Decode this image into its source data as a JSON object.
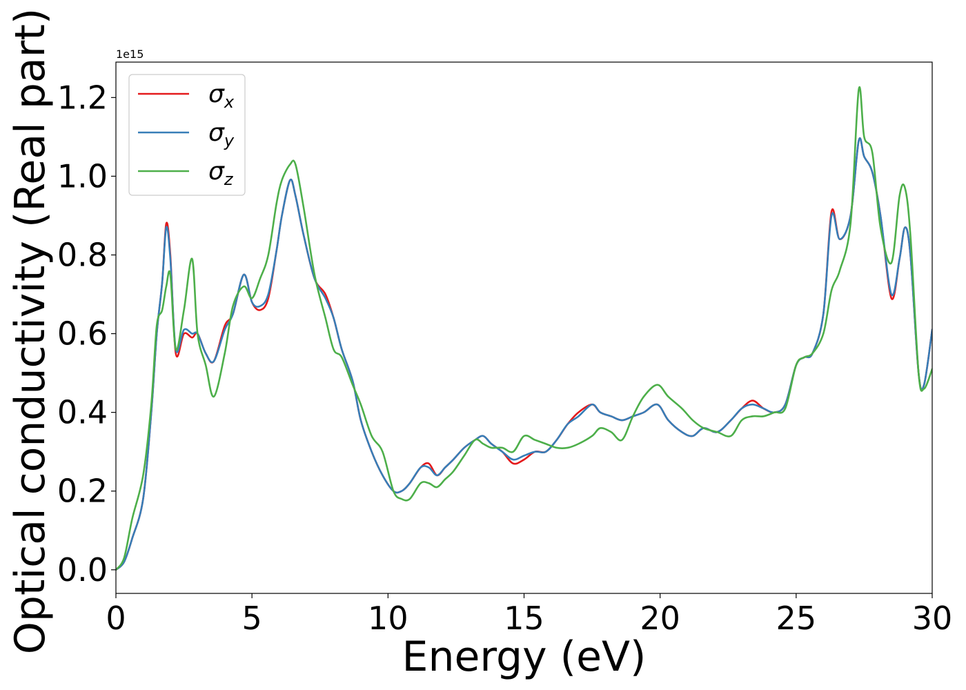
{
  "chart_data": {
    "type": "line",
    "xlabel": "Energy (eV)",
    "ylabel": "Optical conductivity (Real part)",
    "y_offset_text": "1e15",
    "xlim": [
      0,
      30
    ],
    "ylim": [
      -0.06,
      1.29
    ],
    "xticks": [
      0,
      5,
      10,
      15,
      20,
      25,
      30
    ],
    "xtick_labels": [
      "0",
      "5",
      "10",
      "15",
      "20",
      "25",
      "30"
    ],
    "yticks": [
      0.0,
      0.2,
      0.4,
      0.6,
      0.8,
      1.0,
      1.2
    ],
    "ytick_labels": [
      "0.0",
      "0.2",
      "0.4",
      "0.6",
      "0.8",
      "1.0",
      "1.2"
    ],
    "grid": false,
    "legend_position": "top-left",
    "series": [
      {
        "name": "σx",
        "legend_symbol": "σ",
        "legend_subscript": "x",
        "color": "#e41a1c",
        "x": [
          0,
          0.3,
          0.6,
          1.0,
          1.3,
          1.5,
          1.7,
          1.85,
          2.0,
          2.2,
          2.5,
          2.8,
          3.0,
          3.3,
          3.6,
          4.0,
          4.3,
          4.7,
          5.0,
          5.3,
          5.6,
          5.9,
          6.1,
          6.4,
          6.6,
          6.9,
          7.3,
          7.7,
          8.0,
          8.3,
          8.7,
          9.0,
          9.4,
          9.8,
          10.2,
          10.5,
          10.8,
          11.2,
          11.5,
          11.8,
          12.1,
          12.4,
          12.8,
          13.2,
          13.5,
          13.8,
          14.2,
          14.6,
          15.0,
          15.4,
          15.8,
          16.2,
          16.6,
          17.0,
          17.5,
          17.8,
          18.2,
          18.6,
          19.0,
          19.4,
          19.9,
          20.3,
          20.8,
          21.2,
          21.6,
          22.1,
          22.6,
          23.0,
          23.4,
          23.8,
          24.2,
          24.6,
          25.0,
          25.3,
          25.6,
          26.0,
          26.3,
          26.6,
          27.0,
          27.3,
          27.5,
          27.8,
          28.1,
          28.5,
          28.8,
          29.0,
          29.2,
          29.5,
          29.7,
          30.0
        ],
        "values": [
          0.0,
          0.02,
          0.08,
          0.18,
          0.4,
          0.6,
          0.73,
          0.88,
          0.8,
          0.55,
          0.6,
          0.59,
          0.6,
          0.55,
          0.53,
          0.62,
          0.65,
          0.75,
          0.68,
          0.66,
          0.69,
          0.81,
          0.9,
          0.99,
          0.95,
          0.85,
          0.74,
          0.7,
          0.64,
          0.56,
          0.48,
          0.38,
          0.3,
          0.24,
          0.2,
          0.2,
          0.22,
          0.26,
          0.27,
          0.24,
          0.26,
          0.28,
          0.31,
          0.33,
          0.34,
          0.32,
          0.3,
          0.27,
          0.28,
          0.3,
          0.3,
          0.33,
          0.37,
          0.4,
          0.42,
          0.4,
          0.39,
          0.38,
          0.39,
          0.4,
          0.42,
          0.38,
          0.35,
          0.34,
          0.36,
          0.35,
          0.38,
          0.41,
          0.43,
          0.41,
          0.4,
          0.42,
          0.52,
          0.54,
          0.55,
          0.65,
          0.91,
          0.84,
          0.9,
          1.09,
          1.05,
          1.01,
          0.9,
          0.69,
          0.79,
          0.87,
          0.8,
          0.5,
          0.47,
          0.61
        ]
      },
      {
        "name": "σy",
        "legend_symbol": "σ",
        "legend_subscript": "y",
        "color": "#377eb8",
        "x": [
          0,
          0.3,
          0.6,
          1.0,
          1.3,
          1.5,
          1.7,
          1.85,
          2.0,
          2.2,
          2.5,
          2.8,
          3.0,
          3.3,
          3.6,
          4.0,
          4.3,
          4.7,
          5.0,
          5.3,
          5.6,
          5.9,
          6.1,
          6.4,
          6.6,
          6.9,
          7.3,
          7.7,
          8.0,
          8.3,
          8.7,
          9.0,
          9.4,
          9.8,
          10.2,
          10.5,
          10.8,
          11.2,
          11.5,
          11.8,
          12.1,
          12.4,
          12.8,
          13.2,
          13.5,
          13.8,
          14.2,
          14.6,
          15.0,
          15.4,
          15.8,
          16.2,
          16.6,
          17.0,
          17.5,
          17.8,
          18.2,
          18.6,
          19.0,
          19.4,
          19.9,
          20.3,
          20.8,
          21.2,
          21.6,
          22.1,
          22.6,
          23.0,
          23.4,
          23.8,
          24.2,
          24.6,
          25.0,
          25.3,
          25.6,
          26.0,
          26.3,
          26.6,
          27.0,
          27.3,
          27.5,
          27.8,
          28.1,
          28.5,
          28.8,
          29.0,
          29.2,
          29.5,
          29.7,
          30.0
        ],
        "values": [
          0.0,
          0.02,
          0.08,
          0.18,
          0.4,
          0.6,
          0.73,
          0.87,
          0.79,
          0.56,
          0.61,
          0.6,
          0.6,
          0.55,
          0.53,
          0.61,
          0.65,
          0.75,
          0.68,
          0.67,
          0.7,
          0.81,
          0.9,
          0.99,
          0.95,
          0.85,
          0.74,
          0.69,
          0.64,
          0.56,
          0.48,
          0.38,
          0.3,
          0.24,
          0.2,
          0.2,
          0.22,
          0.26,
          0.26,
          0.24,
          0.26,
          0.28,
          0.31,
          0.33,
          0.34,
          0.32,
          0.3,
          0.28,
          0.29,
          0.3,
          0.3,
          0.33,
          0.37,
          0.39,
          0.42,
          0.4,
          0.39,
          0.38,
          0.39,
          0.4,
          0.42,
          0.38,
          0.35,
          0.34,
          0.36,
          0.35,
          0.38,
          0.41,
          0.42,
          0.41,
          0.4,
          0.42,
          0.52,
          0.54,
          0.55,
          0.65,
          0.9,
          0.84,
          0.9,
          1.09,
          1.05,
          1.01,
          0.9,
          0.7,
          0.79,
          0.87,
          0.8,
          0.5,
          0.47,
          0.61
        ]
      },
      {
        "name": "σz",
        "legend_symbol": "σ",
        "legend_subscript": "z",
        "color": "#4daf4a",
        "x": [
          0,
          0.3,
          0.6,
          1.0,
          1.3,
          1.5,
          1.7,
          1.85,
          2.0,
          2.2,
          2.5,
          2.8,
          3.0,
          3.3,
          3.6,
          4.0,
          4.3,
          4.7,
          5.0,
          5.3,
          5.6,
          5.9,
          6.1,
          6.4,
          6.6,
          6.9,
          7.3,
          7.7,
          8.0,
          8.3,
          8.7,
          9.0,
          9.4,
          9.8,
          10.2,
          10.5,
          10.8,
          11.2,
          11.5,
          11.8,
          12.1,
          12.4,
          12.8,
          13.2,
          13.5,
          13.8,
          14.2,
          14.6,
          15.0,
          15.4,
          15.8,
          16.2,
          16.6,
          17.0,
          17.5,
          17.8,
          18.2,
          18.6,
          19.0,
          19.4,
          19.9,
          20.3,
          20.8,
          21.2,
          21.6,
          22.1,
          22.6,
          23.0,
          23.4,
          23.8,
          24.2,
          24.6,
          25.0,
          25.3,
          25.6,
          26.0,
          26.3,
          26.6,
          27.0,
          27.3,
          27.5,
          27.8,
          28.1,
          28.5,
          28.8,
          29.0,
          29.2,
          29.5,
          29.7,
          30.0
        ],
        "values": [
          0.0,
          0.03,
          0.13,
          0.24,
          0.42,
          0.62,
          0.66,
          0.72,
          0.75,
          0.56,
          0.66,
          0.79,
          0.6,
          0.52,
          0.44,
          0.55,
          0.67,
          0.72,
          0.69,
          0.74,
          0.8,
          0.93,
          0.99,
          1.03,
          1.03,
          0.92,
          0.75,
          0.64,
          0.56,
          0.54,
          0.47,
          0.42,
          0.34,
          0.3,
          0.2,
          0.18,
          0.18,
          0.22,
          0.22,
          0.21,
          0.23,
          0.25,
          0.29,
          0.33,
          0.32,
          0.31,
          0.31,
          0.3,
          0.34,
          0.33,
          0.32,
          0.31,
          0.31,
          0.32,
          0.34,
          0.36,
          0.35,
          0.33,
          0.39,
          0.44,
          0.47,
          0.44,
          0.41,
          0.38,
          0.36,
          0.35,
          0.34,
          0.38,
          0.39,
          0.39,
          0.4,
          0.41,
          0.52,
          0.54,
          0.55,
          0.6,
          0.71,
          0.76,
          0.88,
          1.22,
          1.1,
          1.06,
          0.87,
          0.78,
          0.95,
          0.97,
          0.85,
          0.5,
          0.46,
          0.51
        ]
      }
    ]
  }
}
